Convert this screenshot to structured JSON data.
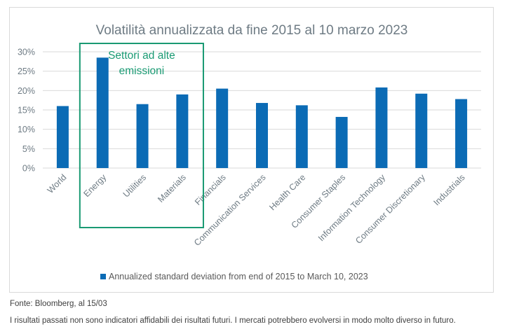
{
  "chart_data": {
    "type": "bar",
    "title": "Volatilità annualizzata da fine 2015 al 10 marzo 2023",
    "categories": [
      "World",
      "Energy",
      "Utilities",
      "Materials",
      "Financials",
      "Communication Services",
      "Health Care",
      "Consumer Staples",
      "Information Technology",
      "Consumer Discretionary",
      "Industrials"
    ],
    "series": [
      {
        "name": "Annualized standard deviation from end of 2015 to March 10, 2023",
        "values": [
          16.0,
          28.5,
          16.5,
          19.0,
          20.5,
          16.8,
          16.2,
          13.2,
          20.8,
          19.2,
          17.8
        ]
      }
    ],
    "ylim": [
      0,
      30
    ],
    "yticks": [
      0,
      5,
      10,
      15,
      20,
      25,
      30
    ],
    "ytick_labels": [
      "0%",
      "5%",
      "10%",
      "15%",
      "20%",
      "25%",
      "30%"
    ],
    "xlabel": "",
    "ylabel": "",
    "grid": true,
    "legend_position": "bottom",
    "annotation": {
      "text_line1": "Settori ad alte",
      "text_line2": "emissioni",
      "highlight_categories": [
        "Energy",
        "Utilities",
        "Materials"
      ]
    }
  },
  "colors": {
    "bar": "#0b6bb5",
    "annotation": "#1a9a73",
    "title": "#6e7b84",
    "axis_text": "#6e7b84",
    "grid": "#d9d9d9",
    "legend_text": "#595959"
  },
  "footer": {
    "source": "Fonte: Bloomberg, al 15/03",
    "disclaimer": "I risultati passati non sono indicatori affidabili dei risultati futuri. I mercati potrebbero evolversi in modo molto diverso in futuro."
  }
}
